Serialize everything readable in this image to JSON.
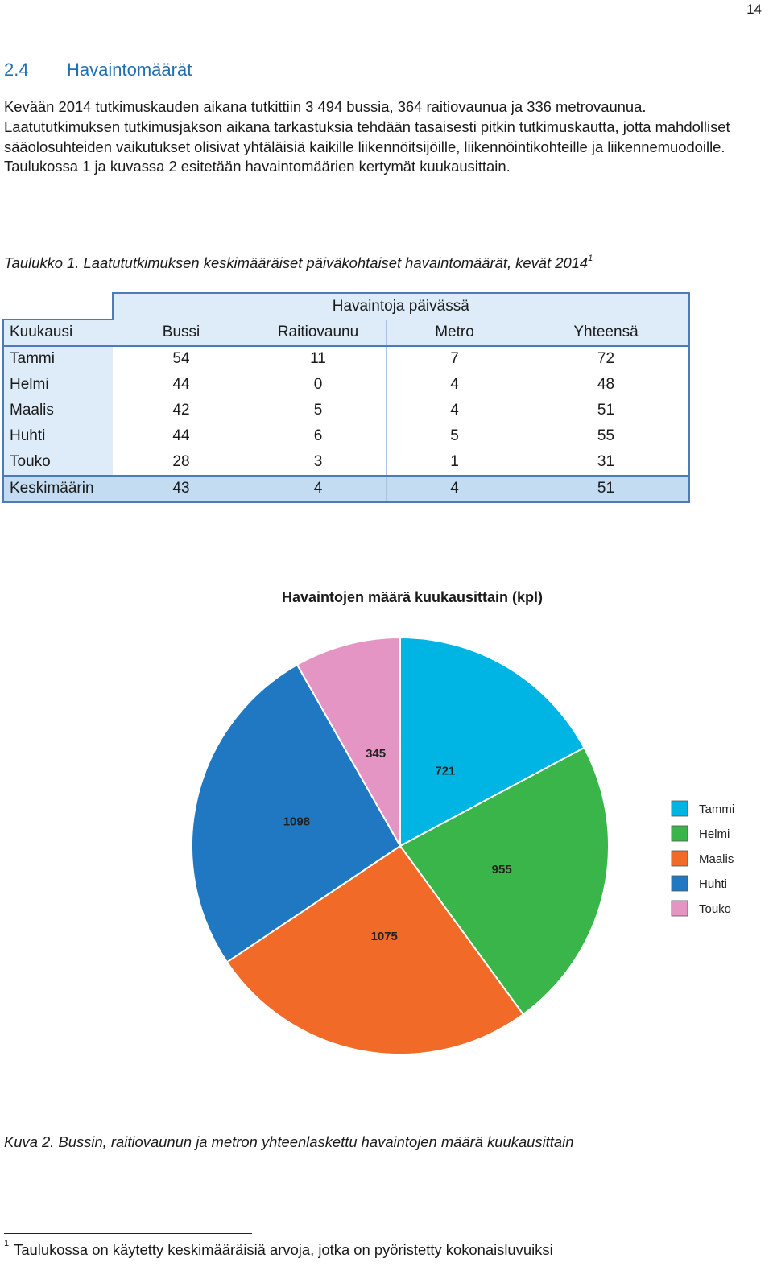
{
  "page_number": "14",
  "section": {
    "number": "2.4",
    "title": "Havaintomäärät"
  },
  "intro_text": "Kevään 2014 tutkimuskauden aikana tutkittiin 3 494 bussia, 364 raitiovaunua ja 336 metrovaunua. Laatututkimuksen tutkimusjakson aikana tarkastuksia tehdään tasaisesti pitkin tutkimuskautta, jotta mahdolliset sääolosuhteiden vaikutukset olisivat yhtäläisiä kaikille liikennöitsijöille, liikennöintikohteille ja liikennemuodoille. Taulukossa 1 ja kuvassa 2 esitetään havaintomäärien kertymät kuukausittain.",
  "table": {
    "caption": "Taulukko 1. Laatututkimuksen keskimääräiset päiväkohtaiset havaintomäärät, kevät 2014",
    "caption_note": "1",
    "group_header": "Havaintoja päivässä",
    "headers": [
      "Kuukausi",
      "Bussi",
      "Raitiovaunu",
      "Metro",
      "Yhteensä"
    ],
    "rows": [
      [
        "Tammi",
        "54",
        "11",
        "7",
        "72"
      ],
      [
        "Helmi",
        "44",
        "0",
        "4",
        "48"
      ],
      [
        "Maalis",
        "42",
        "5",
        "4",
        "51"
      ],
      [
        "Huhti",
        "44",
        "6",
        "5",
        "55"
      ],
      [
        "Touko",
        "28",
        "3",
        "1",
        "31"
      ]
    ],
    "summary_row": [
      "Keskimäärin",
      "43",
      "4",
      "4",
      "51"
    ]
  },
  "chart_data": {
    "type": "pie",
    "title": "Havaintojen määrä kuukausittain (kpl)",
    "categories": [
      "Tammi",
      "Helmi",
      "Maalis",
      "Huhti",
      "Touko"
    ],
    "values": [
      721,
      955,
      1075,
      1098,
      345
    ],
    "colors": [
      "#00b5e3",
      "#3ab54a",
      "#f26a28",
      "#1f78c1",
      "#e595c4"
    ],
    "data_labels": [
      "721",
      "955",
      "1075",
      "1098",
      "345"
    ],
    "start_angle": "12 o'clock",
    "direction": "clockwise",
    "legend_position": "right"
  },
  "figure_caption": "Kuva 2. Bussin, raitiovaunun ja metron yhteenlaskettu havaintojen määrä kuukausittain",
  "footnote": {
    "marker": "1",
    "text": "Taulukossa on käytetty keskimääräisiä arvoja, jotka on pyöristetty kokonaisluvuiksi"
  }
}
